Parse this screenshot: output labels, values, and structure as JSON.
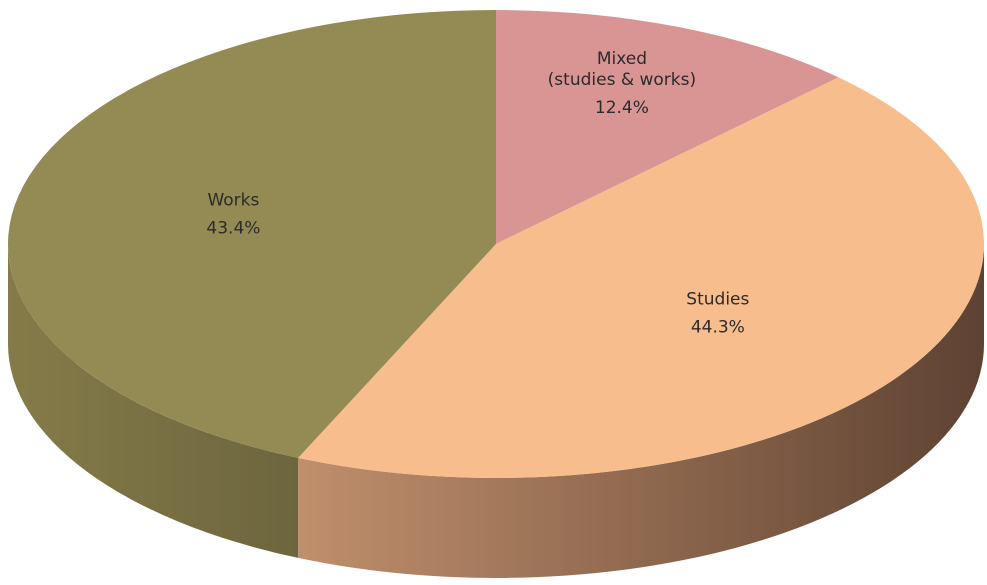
{
  "chart_data": {
    "type": "pie3d",
    "categories": [
      "Mixed\n(studies & works)",
      "Studies",
      "Works"
    ],
    "values": [
      12.4,
      44.3,
      43.4
    ],
    "value_labels": [
      "12.4%",
      "44.3%",
      "43.4%"
    ],
    "colors": [
      "#d89594",
      "#f7bd8c",
      "#948a54"
    ],
    "side_colors": [
      [
        "#b07574",
        "#8a5756"
      ],
      [
        "#c08f6c",
        "#5e4232"
      ],
      [
        "#857b49",
        "#6d653d"
      ]
    ]
  }
}
